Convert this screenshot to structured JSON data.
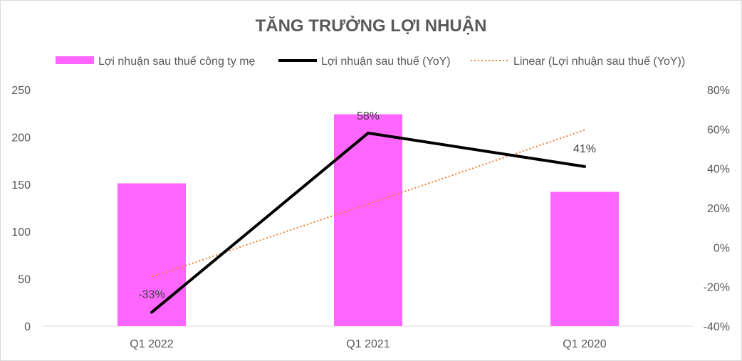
{
  "chart_data": {
    "type": "bar",
    "title": "TĂNG TRƯỞNG LỢI NHUẬN",
    "categories": [
      "Q1 2022",
      "Q1 2021",
      "Q1 2020"
    ],
    "series": [
      {
        "name": "Lợi nhuận sau thuế công ty mẹ",
        "type": "bar",
        "axis": "left",
        "color": "#ff66ff",
        "values": [
          151,
          224,
          142
        ]
      },
      {
        "name": "Lợi nhuận sau thuế (YoY)",
        "type": "line",
        "axis": "right",
        "color": "#000000",
        "values": [
          -0.33,
          0.58,
          0.41
        ],
        "labels": [
          "-33%",
          "58%",
          "41%"
        ]
      },
      {
        "name": "Linear (Lợi nhuận sau thuế (YoY))",
        "type": "trendline",
        "axis": "right",
        "color": "#ed7d31",
        "values": [
          -0.15,
          0.22,
          0.595
        ]
      }
    ],
    "y_left": {
      "min": 0,
      "max": 250,
      "ticks": [
        "0",
        "50",
        "100",
        "150",
        "200",
        "250"
      ]
    },
    "y_right": {
      "min": -0.4,
      "max": 0.8,
      "ticks": [
        "-40%",
        "-20%",
        "0%",
        "20%",
        "40%",
        "60%",
        "80%"
      ]
    },
    "legend": "top",
    "grid": false
  }
}
